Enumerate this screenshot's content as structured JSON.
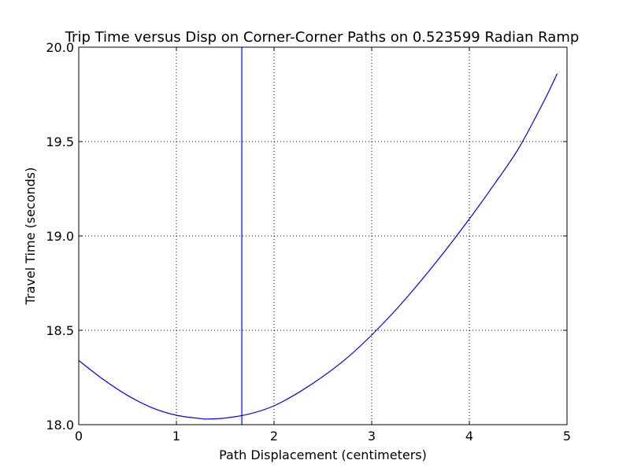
{
  "chart_data": {
    "type": "line",
    "title": "Trip Time versus Disp on Corner-Corner Paths on 0.523599 Radian Ramp",
    "xlabel": "Path Displacement (centimeters)",
    "ylabel": "Travel Time (seconds)",
    "xlim": [
      0,
      5
    ],
    "ylim": [
      18.0,
      20.0
    ],
    "xticks": [
      0,
      1,
      2,
      3,
      4,
      5
    ],
    "xtick_labels": [
      "0",
      "1",
      "2",
      "3",
      "4",
      "5"
    ],
    "yticks": [
      18.0,
      18.5,
      19.0,
      19.5,
      20.0
    ],
    "ytick_labels": [
      "18.0",
      "18.5",
      "19.0",
      "19.5",
      "20.0"
    ],
    "grid": true,
    "line_color": "#0000ff",
    "series": [
      {
        "x": [
          0,
          0.25,
          0.5,
          0.75,
          1.0,
          1.25,
          1.32,
          1.5,
          1.75,
          2.0,
          2.25,
          2.5,
          2.75,
          3.0,
          3.25,
          3.5,
          3.75,
          4.0,
          4.25,
          4.5,
          4.75,
          4.9
        ],
        "y": [
          18.34,
          18.24,
          18.155,
          18.09,
          18.05,
          18.032,
          18.03,
          18.035,
          18.057,
          18.1,
          18.17,
          18.255,
          18.355,
          18.475,
          18.61,
          18.76,
          18.92,
          19.09,
          19.27,
          19.46,
          19.7,
          19.86
        ]
      }
    ],
    "vertical_line": {
      "x": 1.67
    }
  }
}
